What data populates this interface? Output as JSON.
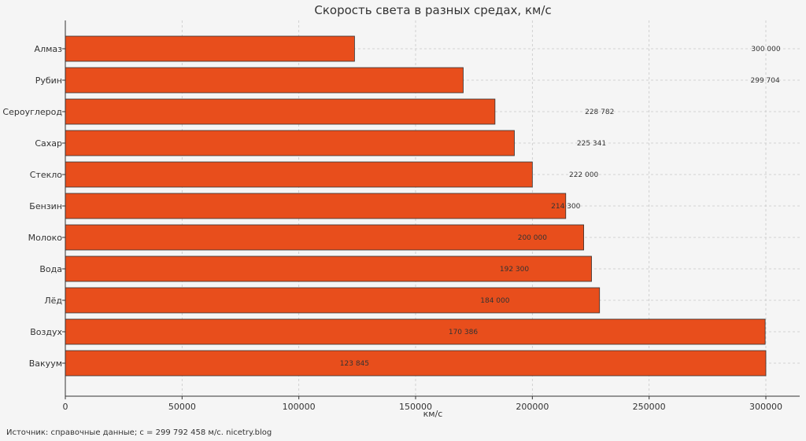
{
  "chart_data": {
    "type": "bar",
    "orientation": "horizontal",
    "title": "Скорость света в разных средах, км/с",
    "xlabel": "км/с",
    "ylabel": "",
    "xlim": [
      0,
      315000
    ],
    "x_ticks": [
      0,
      50000,
      100000,
      150000,
      200000,
      250000,
      300000
    ],
    "x_tick_labels": [
      "0",
      "50000",
      "100000",
      "150000",
      "200000",
      "250000",
      "300000"
    ],
    "categories": [
      "Алмаз",
      "Рубин",
      "Сероуглерод",
      "Сахар",
      "Стекло",
      "Бензин",
      "Молоко",
      "Вода",
      "Лёд",
      "Воздух",
      "Вакуум"
    ],
    "values": [
      123845,
      170386,
      184000,
      192300,
      200000,
      214300,
      222000,
      225341,
      228782,
      299704,
      300000
    ],
    "data_labels": [
      "300 000",
      "299 704",
      "228 782",
      "225 341",
      "222 000",
      "214 300",
      "200 000",
      "192 300",
      "184 000",
      "170 386",
      "123 845"
    ],
    "data_label_values": [
      300000,
      299704,
      228782,
      225341,
      222000,
      214300,
      200000,
      192300,
      184000,
      170386,
      123845
    ],
    "bar_color": "#e84e1c",
    "grid": true,
    "source_note": "Источник: справочные данные; c = 299 792 458 м/с. nicetry.blog"
  }
}
